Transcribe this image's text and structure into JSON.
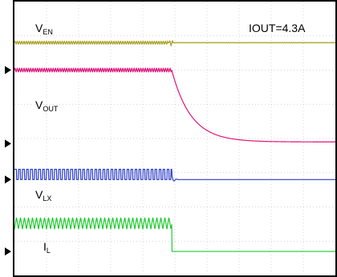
{
  "chart_data": {
    "type": "line",
    "annotation": "IOUT=4.3A",
    "grid": true,
    "divisions": {
      "x": 10,
      "y": 8
    },
    "trigger_div": 4.9,
    "series": [
      {
        "name": "V",
        "subscript": "EN",
        "color": "#a8a020",
        "ground_div": 2.0,
        "model": {
          "kind": "flat",
          "level_div": 0.8,
          "ripple_div": 0.04,
          "ripple_period_div": 0.07,
          "glitch": true
        }
      },
      {
        "name": "V",
        "subscript": "OUT",
        "color": "#e0157a",
        "ground_div": 4.15,
        "model": {
          "kind": "decay",
          "high_div": 2.15,
          "low_div": 0.05,
          "tau_div": 0.6,
          "ripple_div": 0.05,
          "ripple_period_div": 0.07
        }
      },
      {
        "name": "V",
        "subscript": "LX",
        "color": "#2a3cc8",
        "ground_div": 5.2,
        "model": {
          "kind": "square",
          "high_div": 0.3,
          "low_div": 0.0,
          "period_div": 0.125,
          "settle_div": 0.0
        }
      },
      {
        "name": "I",
        "subscript": "L",
        "color": "#22c832",
        "ground_div": 7.3,
        "model": {
          "kind": "triangle",
          "high_div": 1.0,
          "low_div": 0.65,
          "period_div": 0.125,
          "after_div": 0.0
        }
      }
    ]
  }
}
